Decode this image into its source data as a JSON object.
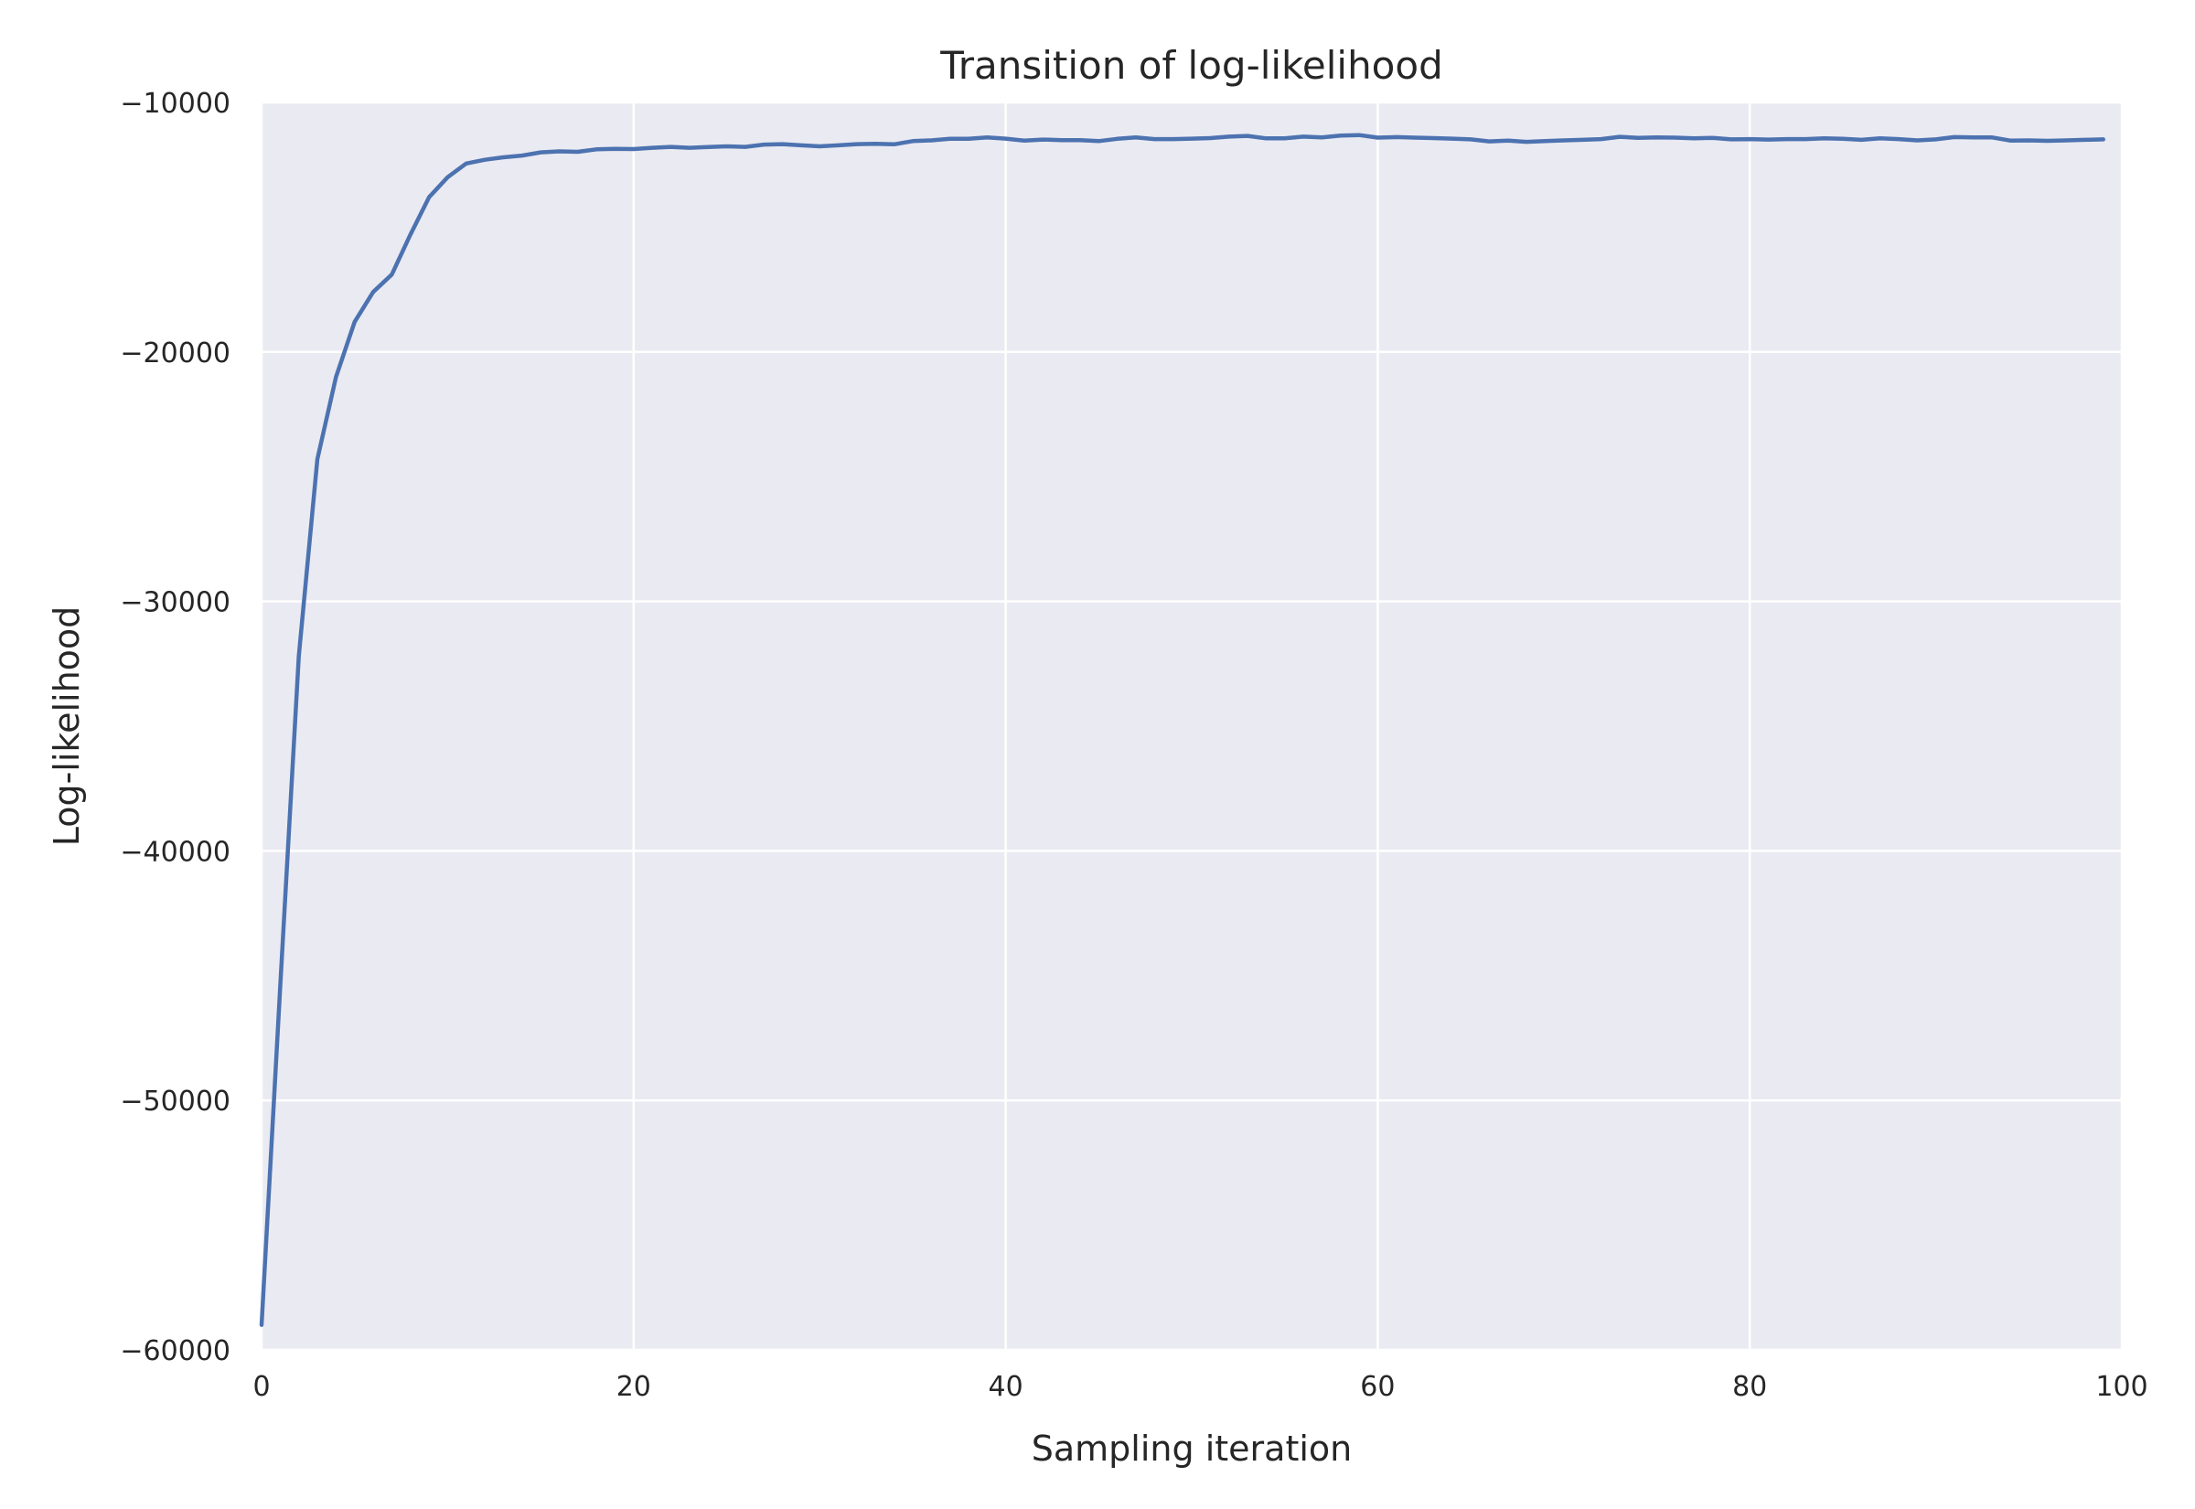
{
  "chart_data": {
    "type": "line",
    "title": "Transition of log-likelihood",
    "xlabel": "Sampling iteration",
    "ylabel": "Log-likelihood",
    "xlim": [
      0,
      100
    ],
    "ylim": [
      -60000,
      -10000
    ],
    "xticks": [
      0,
      20,
      40,
      60,
      80,
      100
    ],
    "xtick_labels": [
      "0",
      "20",
      "40",
      "60",
      "80",
      "100"
    ],
    "yticks": [
      -10000,
      -20000,
      -30000,
      -40000,
      -50000,
      -60000
    ],
    "ytick_labels": [
      "−10000",
      "−20000",
      "−30000",
      "−40000",
      "−50000",
      "−60000"
    ],
    "grid": true,
    "legend": "none",
    "colors": {
      "plot_background": "#eaeaf2",
      "grid": "#ffffff",
      "line": "#4c72b0",
      "text": "#262626"
    },
    "series": [
      {
        "x": [
          0,
          1,
          2,
          3,
          4,
          5,
          6,
          7,
          8,
          9,
          10,
          11,
          12,
          13,
          14,
          15,
          16,
          17,
          18,
          19,
          20,
          21,
          22,
          23,
          24,
          25,
          26,
          27,
          28,
          29,
          30,
          31,
          32,
          33,
          34,
          35,
          36,
          37,
          38,
          39,
          40,
          41,
          42,
          43,
          44,
          45,
          46,
          47,
          48,
          49,
          50,
          51,
          52,
          53,
          54,
          55,
          56,
          57,
          58,
          59,
          60,
          61,
          62,
          63,
          64,
          65,
          66,
          67,
          68,
          69,
          70,
          71,
          72,
          73,
          74,
          75,
          76,
          77,
          78,
          79,
          80,
          81,
          82,
          83,
          84,
          85,
          86,
          87,
          88,
          89,
          90,
          91,
          92,
          93,
          94,
          95,
          96,
          97,
          98,
          99
        ],
        "y": [
          -59000,
          -45500,
          -32200,
          -24300,
          -21000,
          -18800,
          -17600,
          -16900,
          -15300,
          -13800,
          -13000,
          -12450,
          -12300,
          -12200,
          -12130,
          -12000,
          -11960,
          -11980,
          -11880,
          -11860,
          -11870,
          -11820,
          -11780,
          -11820,
          -11790,
          -11760,
          -11780,
          -11690,
          -11670,
          -11720,
          -11760,
          -11720,
          -11670,
          -11660,
          -11680,
          -11550,
          -11520,
          -11460,
          -11460,
          -11400,
          -11450,
          -11530,
          -11490,
          -11510,
          -11510,
          -11550,
          -11460,
          -11400,
          -11470,
          -11470,
          -11450,
          -11430,
          -11370,
          -11340,
          -11440,
          -11440,
          -11370,
          -11400,
          -11330,
          -11310,
          -11410,
          -11390,
          -11410,
          -11430,
          -11450,
          -11480,
          -11560,
          -11530,
          -11580,
          -11550,
          -11520,
          -11500,
          -11470,
          -11380,
          -11420,
          -11400,
          -11410,
          -11440,
          -11420,
          -11480,
          -11470,
          -11490,
          -11470,
          -11470,
          -11440,
          -11460,
          -11500,
          -11440,
          -11470,
          -11520,
          -11480,
          -11390,
          -11400,
          -11400,
          -11530,
          -11520,
          -11540,
          -11520,
          -11500,
          -11480
        ]
      }
    ]
  }
}
